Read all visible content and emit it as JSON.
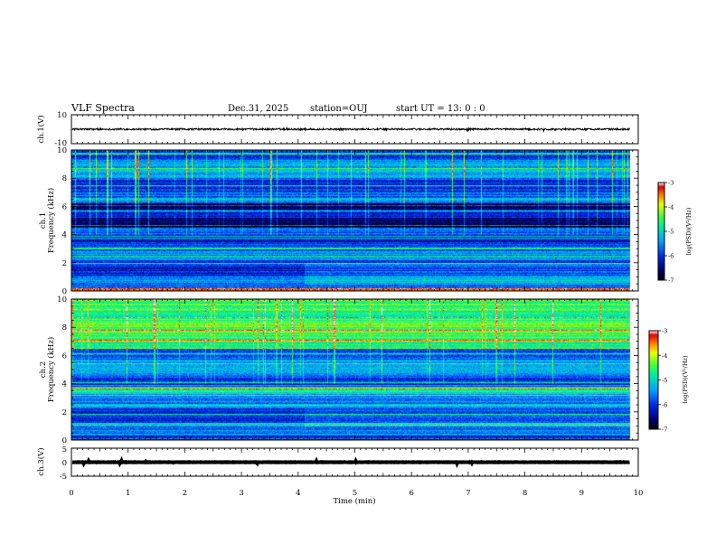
{
  "header": {
    "title": "VLF Spectra",
    "date": "Dec.31, 2025",
    "station": "station=OUJ",
    "start_ut": "start UT =  13: 0  : 0"
  },
  "colors": {
    "waveform": "#000000",
    "colormap": [
      "#000000",
      "#0000a0",
      "#0040ff",
      "#00c8ff",
      "#00ff80",
      "#ffff00",
      "#ff0000",
      "#ffffff"
    ]
  },
  "chart_data": [
    {
      "type": "line",
      "id": "ch1-waveform",
      "ylabel": "ch.1(V)",
      "ylim": [
        -10,
        10
      ],
      "yticks": [
        "10",
        "-10"
      ],
      "baseline": 0,
      "amplitude": 0.6
    },
    {
      "type": "heatmap",
      "id": "ch1-spectrogram",
      "ylabel": "ch.1\nFrequency (kHz)",
      "ylabel_lines": [
        "ch.1",
        "Frequency (kHz)"
      ],
      "ylim": [
        0,
        10
      ],
      "yticks": [
        "0",
        "2",
        "4",
        "6",
        "8",
        "10"
      ],
      "colorbar": {
        "label": "log(PSD)(V²/Hz)",
        "range": [
          -7,
          -3
        ],
        "ticks": [
          "-3",
          "-4",
          "-5",
          "-6",
          "-7"
        ]
      }
    },
    {
      "type": "heatmap",
      "id": "ch2-spectrogram",
      "ylabel": "ch.2\nFrequency (kHz)",
      "ylabel_lines": [
        "ch.2",
        "Frequency (kHz)"
      ],
      "ylim": [
        0,
        10
      ],
      "yticks": [
        "0",
        "2",
        "4",
        "6",
        "8",
        "10"
      ],
      "colorbar": {
        "label": "log(PSD)(V²/Hz)",
        "range": [
          -7,
          -3
        ],
        "ticks": [
          "-3",
          "-4",
          "-5",
          "-6",
          "-7"
        ]
      }
    },
    {
      "type": "line",
      "id": "ch3-waveform",
      "ylabel": "ch.3(V)",
      "ylim": [
        -5,
        5
      ],
      "yticks": [
        "5",
        "0",
        "-5"
      ],
      "baseline": 0,
      "amplitude": 0.15
    }
  ],
  "xaxis": {
    "label": "Time (min)",
    "range": [
      0,
      10
    ],
    "ticks": [
      "0",
      "1",
      "2",
      "3",
      "4",
      "5",
      "6",
      "7",
      "8",
      "9",
      "10"
    ],
    "data_end": 9.85
  }
}
